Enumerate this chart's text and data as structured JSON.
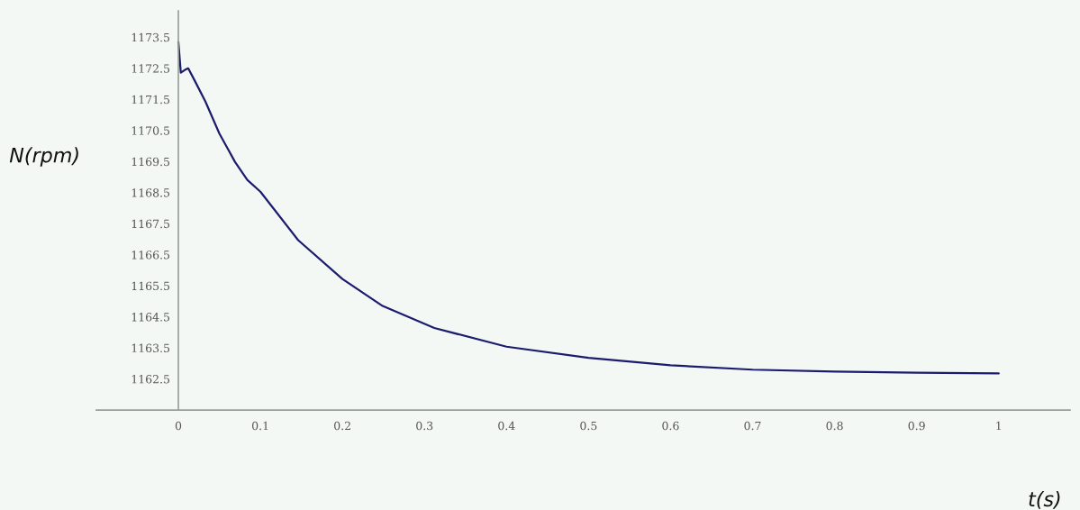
{
  "chart_data": {
    "type": "line",
    "xlabel": "t(s)",
    "ylabel": "N(rpm)",
    "x": [
      0,
      0.003,
      0.008,
      0.012,
      0.02,
      0.033,
      0.05,
      0.069,
      0.084,
      0.1,
      0.146,
      0.2,
      0.249,
      0.312,
      0.4,
      0.5,
      0.6,
      0.7,
      0.8,
      0.9,
      1
    ],
    "series": [
      {
        "color": "#1c1c6e",
        "values": [
          1173.35,
          1172.36,
          1172.45,
          1172.5,
          1172.1,
          1171.43,
          1170.4,
          1169.49,
          1168.91,
          1168.53,
          1166.97,
          1165.72,
          1164.85,
          1164.14,
          1163.54,
          1163.18,
          1162.94,
          1162.8,
          1162.74,
          1162.7,
          1162.68
        ]
      }
    ],
    "xlim": [
      -0.1,
      1.087
    ],
    "ylim": [
      1161.5,
      1174.35
    ],
    "xticks": [
      0,
      0.1,
      0.2,
      0.3,
      0.4,
      0.5,
      0.6,
      0.7,
      0.8,
      0.9,
      1
    ],
    "yticks": [
      1162.5,
      1163.5,
      1164.5,
      1165.5,
      1166.5,
      1167.5,
      1168.5,
      1169.5,
      1170.5,
      1171.5,
      1172.5,
      1173.5
    ],
    "grid": false,
    "legend": false,
    "marker": "none",
    "line_style": "solid"
  }
}
